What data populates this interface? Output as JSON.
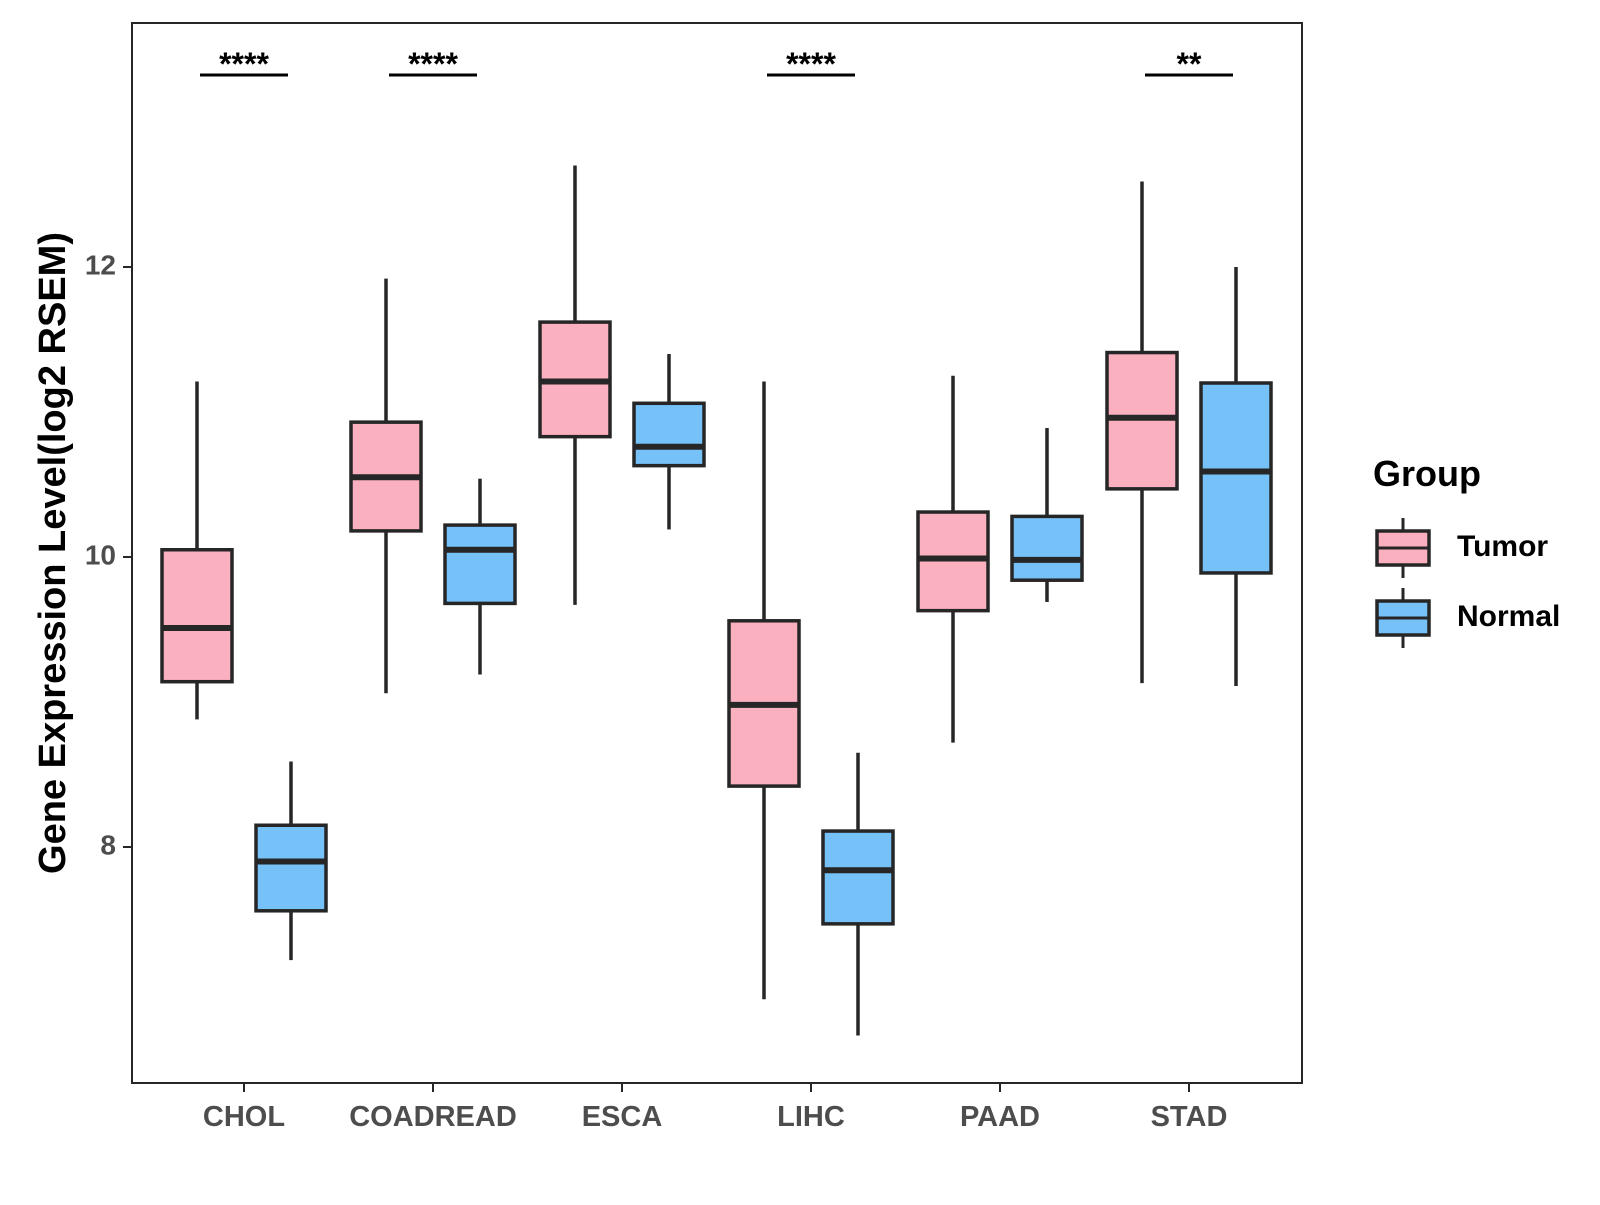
{
  "chart_data": {
    "type": "boxplot",
    "title": "",
    "xlabel": "",
    "ylabel": "Gene Expression Level(log2 RSEM)",
    "ylim": [
      6.4,
      13.7
    ],
    "yticks": [
      8,
      10,
      12
    ],
    "grid": false,
    "legend_position": "right",
    "legend": {
      "title": "Group",
      "entries": [
        {
          "name": "Tumor",
          "color": "#FBB0C0"
        },
        {
          "name": "Normal",
          "color": "#75C1F8"
        }
      ]
    },
    "colors": {
      "outline": "#262626",
      "text": "#000000",
      "tick_text": "#4D4D4D"
    },
    "categories": [
      "CHOL",
      "COADREAD",
      "ESCA",
      "LIHC",
      "PAAD",
      "STAD"
    ],
    "series": [
      {
        "name": "Tumor",
        "color": "#FBB0C0",
        "boxes": [
          {
            "min": 8.88,
            "q1": 9.14,
            "median": 9.51,
            "q3": 10.05,
            "max": 11.21
          },
          {
            "min": 9.06,
            "q1": 10.18,
            "median": 10.55,
            "q3": 10.93,
            "max": 11.92
          },
          {
            "min": 9.67,
            "q1": 10.83,
            "median": 11.21,
            "q3": 11.62,
            "max": 12.7
          },
          {
            "min": 6.95,
            "q1": 8.42,
            "median": 8.98,
            "q3": 9.56,
            "max": 11.21
          },
          {
            "min": 8.72,
            "q1": 9.63,
            "median": 9.99,
            "q3": 10.31,
            "max": 11.25
          },
          {
            "min": 9.13,
            "q1": 10.47,
            "median": 10.96,
            "q3": 11.41,
            "max": 12.59
          }
        ]
      },
      {
        "name": "Normal",
        "color": "#75C1F8",
        "boxes": [
          {
            "min": 7.22,
            "q1": 7.56,
            "median": 7.9,
            "q3": 8.15,
            "max": 8.59
          },
          {
            "min": 9.19,
            "q1": 9.68,
            "median": 10.05,
            "q3": 10.22,
            "max": 10.54
          },
          {
            "min": 10.19,
            "q1": 10.63,
            "median": 10.76,
            "q3": 11.06,
            "max": 11.4
          },
          {
            "min": 6.7,
            "q1": 7.47,
            "median": 7.84,
            "q3": 8.11,
            "max": 8.65
          },
          {
            "min": 9.69,
            "q1": 9.84,
            "median": 9.98,
            "q3": 10.28,
            "max": 10.89
          },
          {
            "min": 9.11,
            "q1": 9.89,
            "median": 10.59,
            "q3": 11.2,
            "max": 12.0
          }
        ]
      }
    ],
    "significance": [
      "****",
      "****",
      "",
      "****",
      "",
      "**"
    ]
  }
}
